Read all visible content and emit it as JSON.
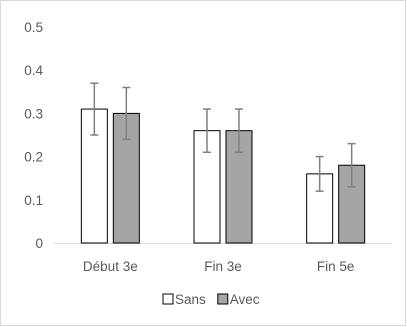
{
  "chart_data": {
    "type": "bar",
    "categories": [
      "Début 3e",
      "Fin 3e",
      "Fin 5e"
    ],
    "series": [
      {
        "name": "Sans",
        "color": "#ffffff",
        "values": [
          0.31,
          0.26,
          0.16
        ],
        "error": [
          0.06,
          0.05,
          0.04
        ]
      },
      {
        "name": "Avec",
        "color": "#a5a5a5",
        "values": [
          0.3,
          0.26,
          0.18
        ],
        "error": [
          0.06,
          0.05,
          0.05
        ]
      }
    ],
    "yticks": [
      "0",
      "0.1",
      "0.2",
      "0.3",
      "0.4",
      "0.5"
    ],
    "ylim": [
      0,
      0.5
    ],
    "grid": false,
    "legend_position": "bottom",
    "title": "",
    "xlabel": "",
    "ylabel": ""
  }
}
